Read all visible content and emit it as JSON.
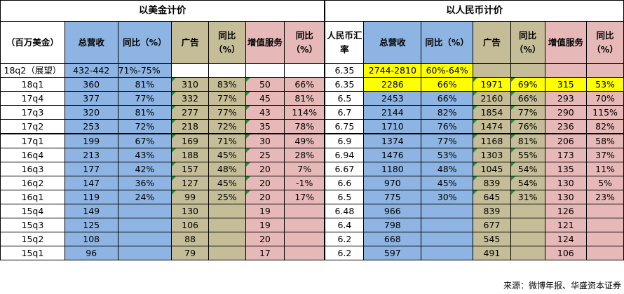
{
  "header_groups": {
    "usd": "以美金计价",
    "rmb": "以人民币计价"
  },
  "columns": {
    "period": "（百万美金）",
    "usd_revenue": "总营收",
    "usd_revenue_yoy": "同比（%）",
    "usd_ads": "广告",
    "usd_ads_yoy": "同比（%）",
    "usd_vas": "增值服务",
    "usd_vas_yoy": "同比（%）",
    "fx_rate": "人民币汇率",
    "rmb_revenue": "总营收",
    "rmb_revenue_yoy": "同比（%）",
    "rmb_ads": "广告",
    "rmb_ads_yoy": "同比（%）",
    "rmb_vas": "增值服务",
    "rmb_vas_yoy": "同比（%）"
  },
  "rows": [
    {
      "period": "18q2（展望）",
      "usd_revenue": "432-442",
      "usd_revenue_yoy": "71%-75%",
      "usd_ads": "",
      "usd_ads_yoy": "",
      "usd_vas": "",
      "usd_vas_yoy": "",
      "fx_rate": "6.35",
      "rmb_revenue": "2744-2810",
      "rmb_revenue_yoy": "60%-64%",
      "rmb_ads": "",
      "rmb_ads_yoy": "",
      "rmb_vas": "",
      "rmb_vas_yoy": ""
    },
    {
      "period": "18q1",
      "usd_revenue": "360",
      "usd_revenue_yoy": "81%",
      "usd_ads": "310",
      "usd_ads_yoy": "83%",
      "usd_vas": "50",
      "usd_vas_yoy": "66%",
      "fx_rate": "6.35",
      "rmb_revenue": "2286",
      "rmb_revenue_yoy": "66%",
      "rmb_ads": "1971",
      "rmb_ads_yoy": "69%",
      "rmb_vas": "315",
      "rmb_vas_yoy": "53%"
    },
    {
      "period": "17q4",
      "usd_revenue": "377",
      "usd_revenue_yoy": "77%",
      "usd_ads": "332",
      "usd_ads_yoy": "77%",
      "usd_vas": "45",
      "usd_vas_yoy": "81%",
      "fx_rate": "6.5",
      "rmb_revenue": "2453",
      "rmb_revenue_yoy": "66%",
      "rmb_ads": "2160",
      "rmb_ads_yoy": "66%",
      "rmb_vas": "293",
      "rmb_vas_yoy": "70%"
    },
    {
      "period": "17q3",
      "usd_revenue": "320",
      "usd_revenue_yoy": "81%",
      "usd_ads": "277",
      "usd_ads_yoy": "77%",
      "usd_vas": "43",
      "usd_vas_yoy": "114%",
      "fx_rate": "6.7",
      "rmb_revenue": "2144",
      "rmb_revenue_yoy": "82%",
      "rmb_ads": "1854",
      "rmb_ads_yoy": "77%",
      "rmb_vas": "290",
      "rmb_vas_yoy": "115%"
    },
    {
      "period": "17q2",
      "usd_revenue": "253",
      "usd_revenue_yoy": "72%",
      "usd_ads": "218",
      "usd_ads_yoy": "72%",
      "usd_vas": "35",
      "usd_vas_yoy": "78%",
      "fx_rate": "6.75",
      "rmb_revenue": "1710",
      "rmb_revenue_yoy": "76%",
      "rmb_ads": "1474",
      "rmb_ads_yoy": "76%",
      "rmb_vas": "236",
      "rmb_vas_yoy": "82%"
    },
    {
      "period": "17q1",
      "usd_revenue": "199",
      "usd_revenue_yoy": "67%",
      "usd_ads": "169",
      "usd_ads_yoy": "71%",
      "usd_vas": "30",
      "usd_vas_yoy": "49%",
      "fx_rate": "6.9",
      "rmb_revenue": "1374",
      "rmb_revenue_yoy": "77%",
      "rmb_ads": "1168",
      "rmb_ads_yoy": "81%",
      "rmb_vas": "206",
      "rmb_vas_yoy": "58%"
    },
    {
      "period": "16q4",
      "usd_revenue": "213",
      "usd_revenue_yoy": "43%",
      "usd_ads": "188",
      "usd_ads_yoy": "45%",
      "usd_vas": "25",
      "usd_vas_yoy": "28%",
      "fx_rate": "6.94",
      "rmb_revenue": "1476",
      "rmb_revenue_yoy": "53%",
      "rmb_ads": "1303",
      "rmb_ads_yoy": "55%",
      "rmb_vas": "173",
      "rmb_vas_yoy": "37%"
    },
    {
      "period": "16q3",
      "usd_revenue": "177",
      "usd_revenue_yoy": "42%",
      "usd_ads": "157",
      "usd_ads_yoy": "48%",
      "usd_vas": "20",
      "usd_vas_yoy": "7%",
      "fx_rate": "6.67",
      "rmb_revenue": "1180",
      "rmb_revenue_yoy": "48%",
      "rmb_ads": "1045",
      "rmb_ads_yoy": "54%",
      "rmb_vas": "135",
      "rmb_vas_yoy": "11%"
    },
    {
      "period": "16q2",
      "usd_revenue": "147",
      "usd_revenue_yoy": "36%",
      "usd_ads": "127",
      "usd_ads_yoy": "45%",
      "usd_vas": "20",
      "usd_vas_yoy": "-1%",
      "fx_rate": "6.6",
      "rmb_revenue": "970",
      "rmb_revenue_yoy": "45%",
      "rmb_ads": "839",
      "rmb_ads_yoy": "54%",
      "rmb_vas": "130",
      "rmb_vas_yoy": "5%"
    },
    {
      "period": "16q1",
      "usd_revenue": "119",
      "usd_revenue_yoy": "24%",
      "usd_ads": "99",
      "usd_ads_yoy": "25%",
      "usd_vas": "20",
      "usd_vas_yoy": "17%",
      "fx_rate": "6.5",
      "rmb_revenue": "775",
      "rmb_revenue_yoy": "30%",
      "rmb_ads": "645",
      "rmb_ads_yoy": "31%",
      "rmb_vas": "130",
      "rmb_vas_yoy": "23%"
    },
    {
      "period": "15q4",
      "usd_revenue": "149",
      "usd_revenue_yoy": "",
      "usd_ads": "130",
      "usd_ads_yoy": "",
      "usd_vas": "19",
      "usd_vas_yoy": "",
      "fx_rate": "6.48",
      "rmb_revenue": "966",
      "rmb_revenue_yoy": "",
      "rmb_ads": "839",
      "rmb_ads_yoy": "",
      "rmb_vas": "126",
      "rmb_vas_yoy": ""
    },
    {
      "period": "15q3",
      "usd_revenue": "125",
      "usd_revenue_yoy": "",
      "usd_ads": "106",
      "usd_ads_yoy": "",
      "usd_vas": "19",
      "usd_vas_yoy": "",
      "fx_rate": "6.4",
      "rmb_revenue": "798",
      "rmb_revenue_yoy": "",
      "rmb_ads": "677",
      "rmb_ads_yoy": "",
      "rmb_vas": "121",
      "rmb_vas_yoy": ""
    },
    {
      "period": "15q2",
      "usd_revenue": "108",
      "usd_revenue_yoy": "",
      "usd_ads": "88",
      "usd_ads_yoy": "",
      "usd_vas": "20",
      "usd_vas_yoy": "",
      "fx_rate": "6.2",
      "rmb_revenue": "668",
      "rmb_revenue_yoy": "",
      "rmb_ads": "545",
      "rmb_ads_yoy": "",
      "rmb_vas": "124",
      "rmb_vas_yoy": ""
    },
    {
      "period": "15q1",
      "usd_revenue": "96",
      "usd_revenue_yoy": "",
      "usd_ads": "79",
      "usd_ads_yoy": "",
      "usd_vas": "17",
      "usd_vas_yoy": "",
      "fx_rate": "6.2",
      "rmb_revenue": "597",
      "rmb_revenue_yoy": "",
      "rmb_ads": "491",
      "rmb_ads_yoy": "",
      "rmb_vas": "106",
      "rmb_vas_yoy": ""
    }
  ],
  "source_note": "来源：微博年报、华盛资本证券",
  "colors": {
    "revenue_fill": "#8db4e2",
    "ads_fill": "#c4bd97",
    "vas_fill": "#e6b9b8",
    "highlight_fill": "#ffff00",
    "cell_flag": "#1f8f3a"
  }
}
